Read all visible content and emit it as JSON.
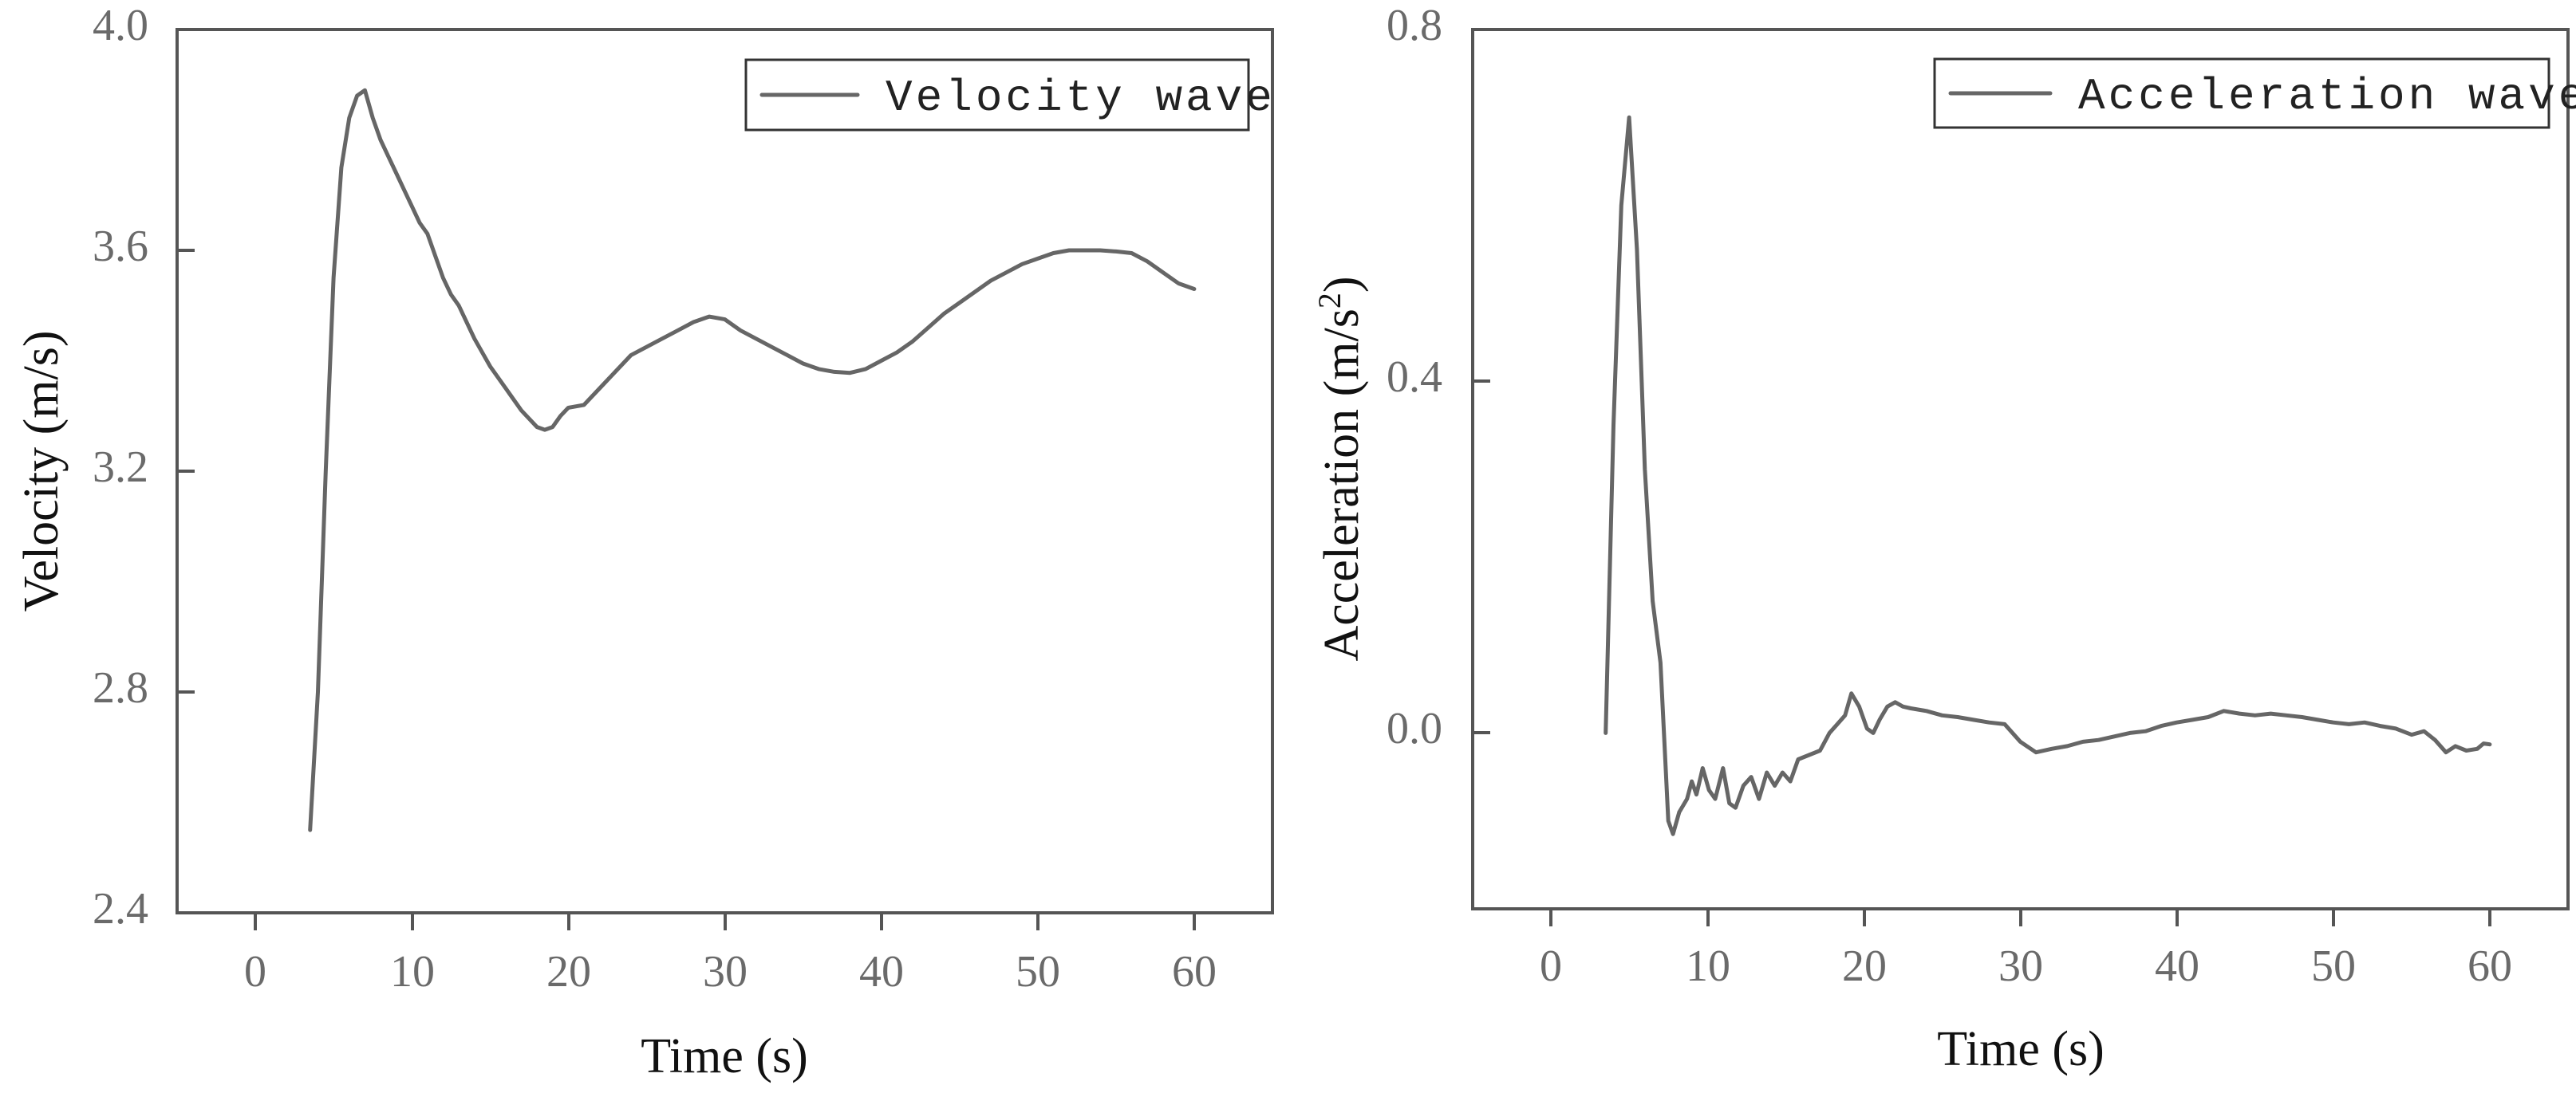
{
  "chart_data": [
    {
      "type": "line",
      "title": "",
      "xlabel": "Time (s)",
      "ylabel": "Velocity (m/s)",
      "xlim": [
        -5,
        65
      ],
      "ylim": [
        2.4,
        4.0
      ],
      "xticks": [
        0,
        10,
        20,
        30,
        40,
        50,
        60
      ],
      "xtick_labels": [
        "0",
        "10",
        "20",
        "30",
        "40",
        "50",
        "60"
      ],
      "yticks": [
        2.4,
        2.8,
        3.2,
        3.6,
        4.0
      ],
      "ytick_labels": [
        "2.4",
        "2.8",
        "3.2",
        "3.6",
        "4.0"
      ],
      "legend_position": "top-right",
      "grid": false,
      "series": [
        {
          "name": "Velocity wave",
          "color": "#666666",
          "x": [
            3.5,
            4.0,
            4.5,
            5.0,
            5.5,
            6.0,
            6.5,
            7.0,
            7.5,
            8.0,
            8.5,
            9.0,
            9.5,
            10.0,
            10.5,
            11.0,
            11.5,
            12.0,
            12.5,
            13.0,
            14.0,
            15.0,
            16.0,
            17.0,
            18.0,
            18.5,
            19.0,
            19.5,
            20.0,
            21.0,
            22.0,
            23.0,
            24.0,
            25.0,
            26.0,
            27.0,
            28.0,
            29.0,
            30.0,
            31.0,
            32.0,
            33.0,
            34.0,
            35.0,
            36.0,
            37.0,
            38.0,
            39.0,
            40.0,
            41.0,
            42.0,
            43.0,
            44.0,
            45.0,
            46.0,
            47.0,
            48.0,
            49.0,
            50.0,
            51.0,
            52.0,
            53.0,
            54.0,
            55.0,
            56.0,
            57.0,
            58.0,
            59.0,
            60.0
          ],
          "y": [
            2.55,
            2.8,
            3.2,
            3.55,
            3.75,
            3.84,
            3.88,
            3.89,
            3.84,
            3.8,
            3.77,
            3.74,
            3.71,
            3.68,
            3.65,
            3.63,
            3.59,
            3.55,
            3.52,
            3.5,
            3.44,
            3.39,
            3.35,
            3.31,
            3.28,
            3.275,
            3.28,
            3.3,
            3.315,
            3.32,
            3.35,
            3.38,
            3.41,
            3.425,
            3.44,
            3.455,
            3.47,
            3.48,
            3.475,
            3.455,
            3.44,
            3.425,
            3.41,
            3.395,
            3.385,
            3.38,
            3.378,
            3.385,
            3.4,
            3.415,
            3.435,
            3.46,
            3.485,
            3.505,
            3.525,
            3.545,
            3.56,
            3.575,
            3.585,
            3.595,
            3.6,
            3.6,
            3.6,
            3.598,
            3.595,
            3.58,
            3.56,
            3.54,
            3.53
          ]
        }
      ]
    },
    {
      "type": "line",
      "title": "",
      "xlabel": "Time (s)",
      "ylabel": "Acceleration (m/s2)",
      "ylabel_main": "Acceleration (m/s",
      "ylabel_sup": "2",
      "ylabel_close": ")",
      "xlim": [
        -5,
        65
      ],
      "ylim": [
        -0.2,
        0.8
      ],
      "xticks": [
        0,
        10,
        20,
        30,
        40,
        50,
        60
      ],
      "xtick_labels": [
        "0",
        "10",
        "20",
        "30",
        "40",
        "50",
        "60"
      ],
      "yticks": [
        0.0,
        0.4,
        0.8
      ],
      "ytick_labels": [
        "0.0",
        "0.4",
        "0.8"
      ],
      "legend_position": "top-right",
      "grid": false,
      "series": [
        {
          "name": "Acceleration wave",
          "color": "#666666",
          "x": [
            3.5,
            4.0,
            4.5,
            5.0,
            5.5,
            6.0,
            6.5,
            7.0,
            7.5,
            7.8,
            8.2,
            8.7,
            9.0,
            9.3,
            9.7,
            10.1,
            10.5,
            11.0,
            11.4,
            11.8,
            12.3,
            12.8,
            13.3,
            13.8,
            14.3,
            14.8,
            15.3,
            15.8,
            16.5,
            17.2,
            17.8,
            18.3,
            18.8,
            19.2,
            19.7,
            20.2,
            20.6,
            21.0,
            21.5,
            22.0,
            22.5,
            23.0,
            24.0,
            25.0,
            26.0,
            27.0,
            28.0,
            29.0,
            30.0,
            31.0,
            32.0,
            33.0,
            34.0,
            35.0,
            36.0,
            37.0,
            38.0,
            39.0,
            40.0,
            41.0,
            42.0,
            43.0,
            44.0,
            45.0,
            46.0,
            47.0,
            48.0,
            49.0,
            50.0,
            51.0,
            52.0,
            53.0,
            54.0,
            55.0,
            55.8,
            56.5,
            57.2,
            57.8,
            58.5,
            59.2,
            59.6,
            60.0
          ],
          "y": [
            0.0,
            0.35,
            0.6,
            0.7,
            0.55,
            0.3,
            0.15,
            0.08,
            -0.1,
            -0.115,
            -0.09,
            -0.075,
            -0.055,
            -0.07,
            -0.04,
            -0.065,
            -0.075,
            -0.04,
            -0.08,
            -0.085,
            -0.06,
            -0.05,
            -0.075,
            -0.045,
            -0.06,
            -0.045,
            -0.055,
            -0.03,
            -0.025,
            -0.02,
            0.0,
            0.01,
            0.02,
            0.045,
            0.03,
            0.005,
            0.0,
            0.015,
            0.03,
            0.035,
            0.03,
            0.028,
            0.025,
            0.02,
            0.018,
            0.015,
            0.012,
            0.01,
            -0.01,
            -0.022,
            -0.018,
            -0.015,
            -0.01,
            -0.008,
            -0.004,
            0.0,
            0.002,
            0.008,
            0.012,
            0.015,
            0.018,
            0.025,
            0.022,
            0.02,
            0.022,
            0.02,
            0.018,
            0.015,
            0.012,
            0.01,
            0.012,
            0.008,
            0.005,
            -0.002,
            0.002,
            -0.008,
            -0.022,
            -0.015,
            -0.02,
            -0.018,
            -0.012,
            -0.013
          ]
        }
      ]
    }
  ]
}
